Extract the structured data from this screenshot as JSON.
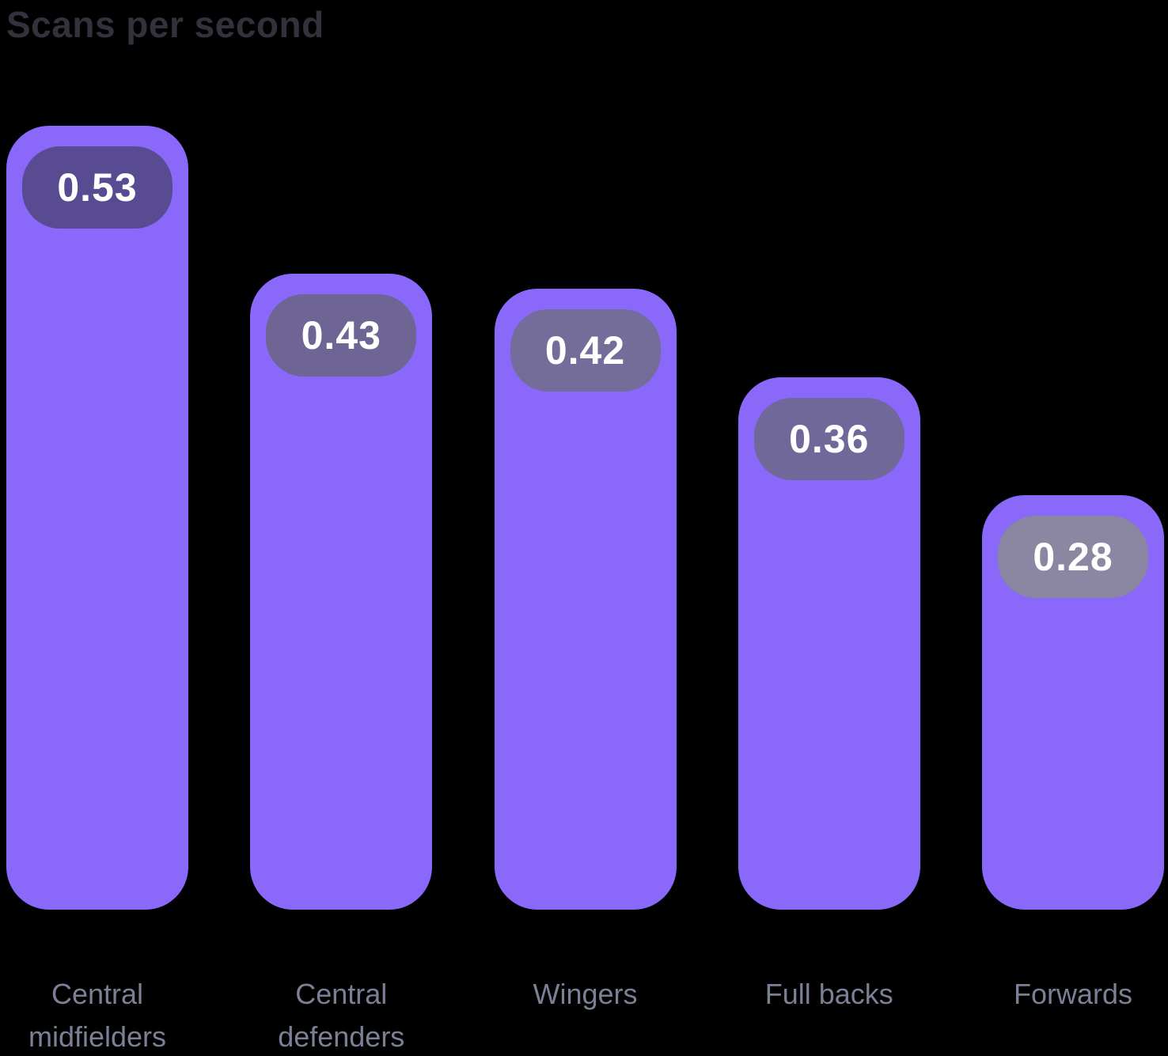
{
  "page": {
    "background_color": "#000000"
  },
  "header": {
    "title": "Scans per second",
    "title_color": "#32313c"
  },
  "chart_data": {
    "type": "bar",
    "title": "Scans per second",
    "categories": [
      "Central midfielders",
      "Central defenders",
      "Wingers",
      "Full backs",
      "Forwards"
    ],
    "values": [
      0.53,
      0.43,
      0.42,
      0.36,
      0.28
    ],
    "value_labels": [
      "0.53",
      "0.43",
      "0.42",
      "0.36",
      "0.28"
    ],
    "xlabel": "",
    "ylabel": "",
    "ylim": [
      0,
      0.615
    ],
    "grid": false,
    "legend": false,
    "axes_shown": false,
    "value_label_position": "badge-inside-bar-top",
    "bar_color": "#8968fa",
    "badge_colors": [
      "#594b92",
      "#6e6595",
      "#746c99",
      "#6f6899",
      "#8b86a2"
    ],
    "badge_text_color": "#ffffff",
    "category_label_color": "#7c8096"
  }
}
